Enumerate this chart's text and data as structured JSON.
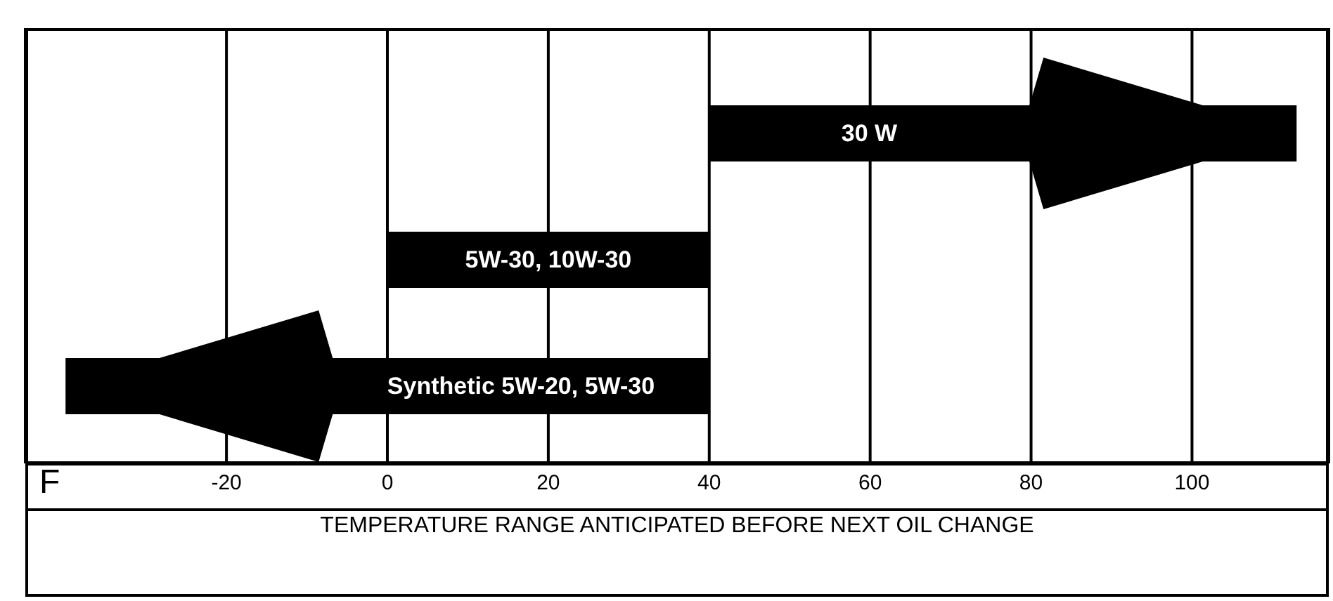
{
  "chart_data": {
    "type": "bar",
    "orientation": "horizontal",
    "xlabel": "TEMPERATURE RANGE ANTICIPATED BEFORE NEXT OIL CHANGE",
    "annotations": [
      "F"
    ],
    "categories": [
      "30 W",
      "5W-30, 10W-30",
      "Synthetic 5W-20, 5W-30"
    ],
    "base": [
      40,
      0,
      -40
    ],
    "values": [
      73,
      40,
      80
    ],
    "colors": [
      "#000000",
      "#000000",
      "#000000"
    ],
    "xlim": [
      -45,
      117
    ],
    "xticks": [
      -20,
      0,
      20,
      40,
      60,
      80,
      100
    ],
    "grid": "x"
  }
}
